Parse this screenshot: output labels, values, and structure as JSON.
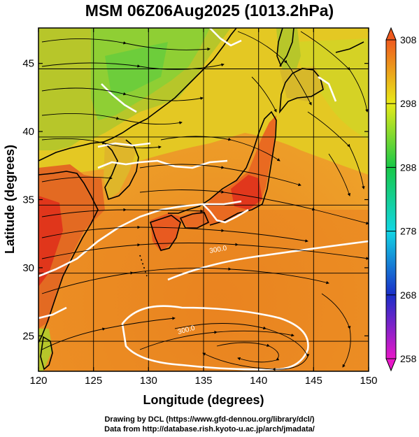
{
  "title": "MSM 06Z06Aug2025 (1013.2hPa)",
  "footer": {
    "line1": "Drawing by DCL (https://www.gfd-dennou.org/library/dcl/)",
    "line2": "Data from http://database.rish.kyoto-u.ac.jp/arch/jmadata/"
  },
  "chart_data": {
    "type": "heatmap",
    "title": "MSM 06Z06Aug2025 (1013.2hPa)",
    "xlabel": "Longitude (degrees)",
    "ylabel": "Latitude  (degrees)",
    "xlim": [
      120,
      150
    ],
    "ylim": [
      22.4,
      47.6
    ],
    "x_ticks": [
      120,
      125,
      130,
      135,
      140,
      145,
      150
    ],
    "y_ticks": [
      25,
      30,
      35,
      40,
      45
    ],
    "grid": true,
    "colorbar": {
      "range": [
        258,
        308
      ],
      "ticks": [
        258,
        268,
        278,
        288,
        298,
        308
      ],
      "colors": [
        "#e817c8",
        "#1a2ec8",
        "#12d6e4",
        "#18c848",
        "#e8ea18",
        "#ef5a1e"
      ]
    },
    "contour_labels": [
      "300.0",
      "300.0"
    ],
    "overlays": [
      "streamlines",
      "coastlines",
      "white contours"
    ]
  }
}
